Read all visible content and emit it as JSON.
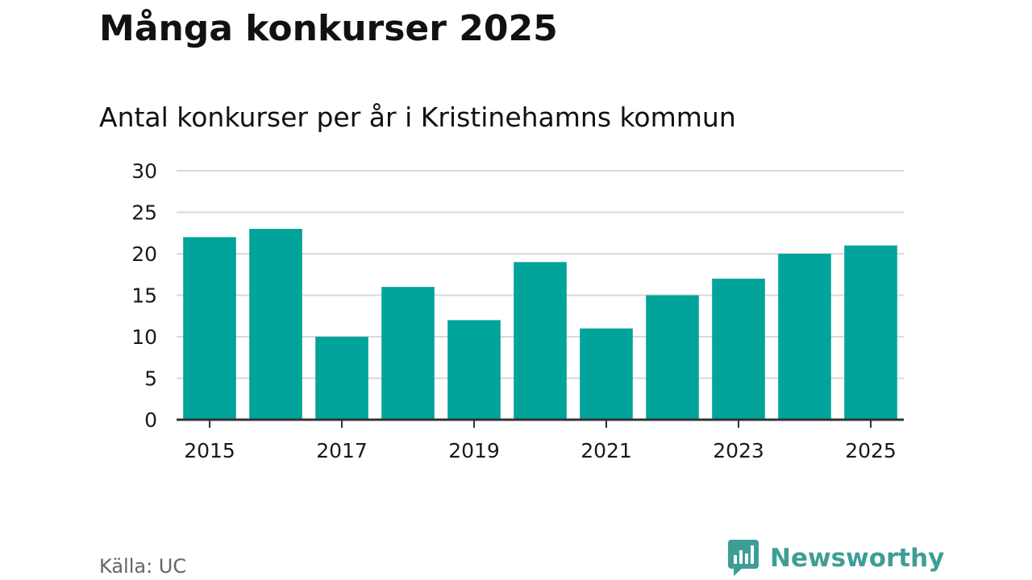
{
  "header": {
    "title": "Många konkurser 2025",
    "subtitle": "Antal konkurser per år i Kristinehamns kommun"
  },
  "footer": {
    "source": "Källa: UC",
    "brand": "Newsworthy"
  },
  "colors": {
    "bar": "#00a49a",
    "grid": "#d9d9d9",
    "axis": "#333333",
    "text": "#1a1a1a",
    "brand": "#3e9e96"
  },
  "chart_data": {
    "type": "bar",
    "title": "Många konkurser 2025",
    "subtitle": "Antal konkurser per år i Kristinehamns kommun",
    "xlabel": "",
    "ylabel": "",
    "categories": [
      "2015",
      "2016",
      "2017",
      "2018",
      "2019",
      "2020",
      "2021",
      "2022",
      "2023",
      "2024",
      "2025"
    ],
    "values": [
      22,
      23,
      10,
      16,
      12,
      19,
      11,
      15,
      17,
      20,
      21
    ],
    "ylim": [
      0,
      30
    ],
    "yticks": [
      "0",
      "5",
      "10",
      "15",
      "20",
      "25",
      "30"
    ],
    "xticks": [
      "2015",
      "2017",
      "2019",
      "2021",
      "2023",
      "2025"
    ],
    "grid": true,
    "source": "Källa: UC"
  }
}
